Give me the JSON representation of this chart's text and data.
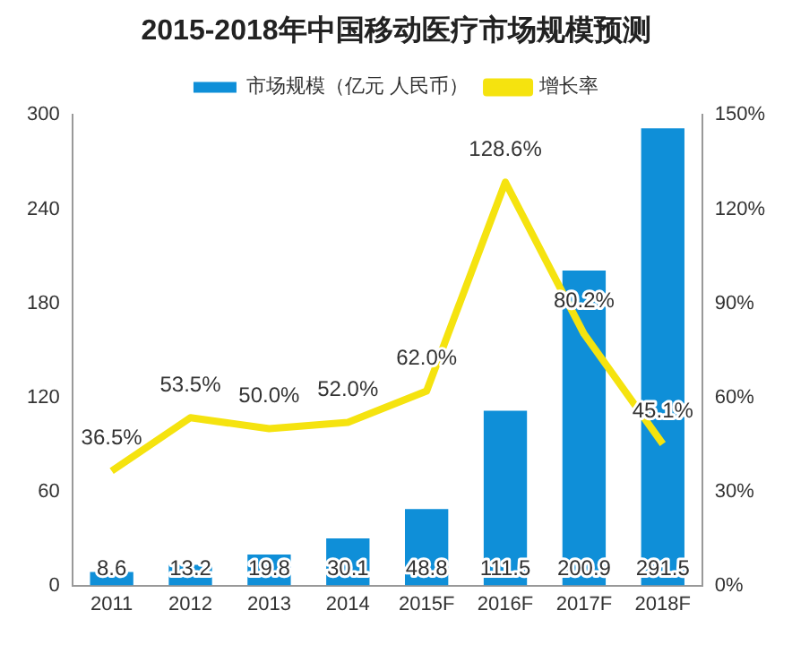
{
  "chart_data": {
    "type": "bar",
    "title": "2015-2018年中国移动医疗市场规模预测",
    "categories": [
      "2011",
      "2012",
      "2013",
      "2014",
      "2015F",
      "2016F",
      "2017F",
      "2018F"
    ],
    "series": [
      {
        "name": "市场规模（亿元 人民币）",
        "color": "#0f8fd8",
        "values": [
          8.6,
          13.2,
          19.8,
          30.1,
          48.8,
          111.5,
          200.9,
          291.5
        ],
        "value_labels": [
          "8.6",
          "13.2",
          "19.8",
          "30.1",
          "48.8",
          "111.5",
          "200.9",
          "291.5"
        ]
      },
      {
        "name": "增长率",
        "type": "line",
        "axis": "y2",
        "color": "#f5e30f",
        "values": [
          36.5,
          53.5,
          50.0,
          52.0,
          62.0,
          128.6,
          80.2,
          45.1
        ],
        "value_labels": [
          "36.5%",
          "53.5%",
          "50.0%",
          "52.0%",
          "62.0%",
          "128.6%",
          "80.2%",
          "45.1%"
        ]
      }
    ],
    "ylim": [
      0,
      300
    ],
    "yticks": [
      0,
      60,
      120,
      180,
      240,
      300
    ],
    "y2lim": [
      0,
      150
    ],
    "y2ticks": [
      {
        "value": 0,
        "label": "0%"
      },
      {
        "value": 30,
        "label": "30%"
      },
      {
        "value": 60,
        "label": "60%"
      },
      {
        "value": 90,
        "label": "90%"
      },
      {
        "value": 120,
        "label": "120%"
      },
      {
        "value": 150,
        "label": "150%"
      }
    ],
    "grid": false,
    "legend": "top",
    "marker": "none"
  }
}
